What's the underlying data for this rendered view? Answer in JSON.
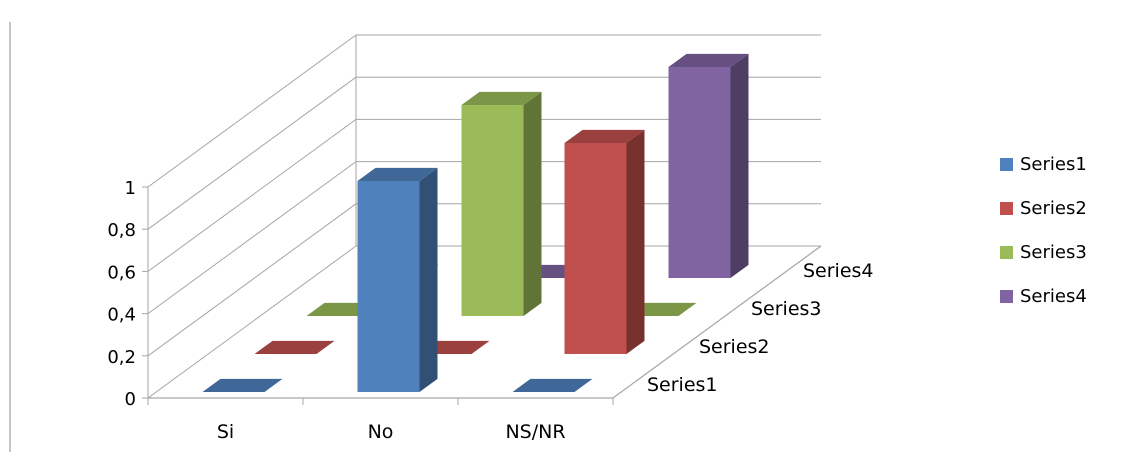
{
  "chart_data": {
    "type": "bar",
    "title": "",
    "xlabel": "",
    "ylabel": "",
    "categories": [
      "Si",
      "No",
      "NS/NR"
    ],
    "series": [
      {
        "name": "Series1",
        "values": [
          0,
          1,
          0
        ]
      },
      {
        "name": "Series2",
        "values": [
          0,
          0,
          1
        ]
      },
      {
        "name": "Series3",
        "values": [
          0,
          1,
          0
        ]
      },
      {
        "name": "Series4",
        "values": [
          0,
          0,
          1
        ]
      }
    ],
    "yticks": [
      "0",
      "0,2",
      "0,4",
      "0,6",
      "0,8",
      "1"
    ],
    "ylim": [
      0,
      1
    ],
    "depth_axis_labels": [
      "Series1",
      "Series2",
      "Series3",
      "Series4"
    ],
    "grid": true,
    "legend_position": "right",
    "colors": {
      "Series1": "#4f81bd",
      "Series2": "#c0504d",
      "Series3": "#9bbb59",
      "Series4": "#8064a2"
    }
  }
}
